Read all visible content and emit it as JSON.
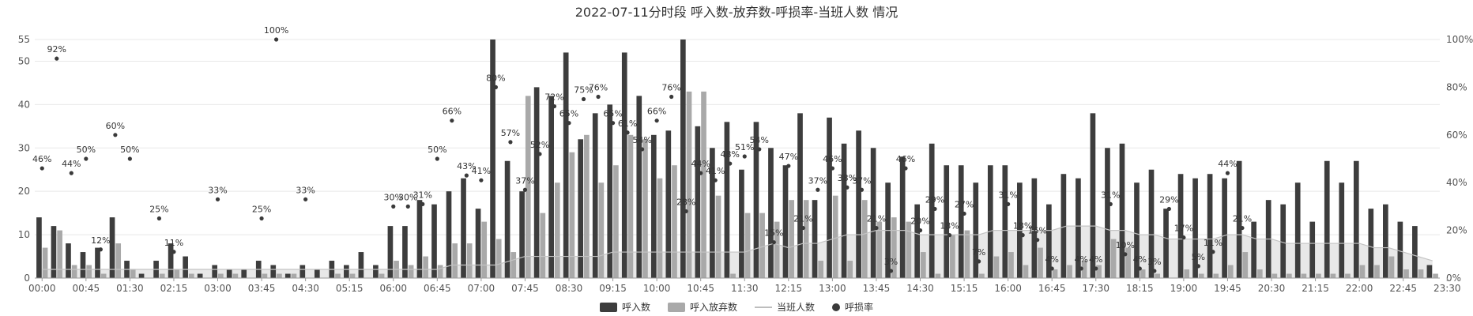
{
  "chart_data": {
    "type": "bar",
    "title": "2022-07-11分时段 呼入数-放弃数-呼损率-当班人数 情况",
    "xlabel": "",
    "ylabel": "",
    "ylim": [
      0,
      55
    ],
    "y2lim": [
      0,
      100
    ],
    "y_ticks": [
      "0",
      "10",
      "20",
      "30",
      "40",
      "50",
      "55"
    ],
    "y2_ticks": [
      "0%",
      "20%",
      "40%",
      "60%",
      "80%",
      "100%"
    ],
    "x_tick_labels": [
      "00:00",
      "00:45",
      "01:30",
      "02:15",
      "03:00",
      "03:45",
      "04:30",
      "05:15",
      "06:00",
      "06:45",
      "07:00",
      "07:45",
      "08:30",
      "09:15",
      "10:00",
      "10:45",
      "11:30",
      "12:15",
      "13:00",
      "13:45",
      "14:30",
      "15:15",
      "16:00",
      "16:45",
      "17:30",
      "18:15",
      "19:00",
      "19:45",
      "20:30",
      "21:15",
      "22:00",
      "22:45",
      "23:30"
    ],
    "grid": true,
    "legend_position": "bottom",
    "colors": {
      "calls": "#3d3d3d",
      "abandon": "#a9a9a9",
      "staff_line": "#c4c4c4",
      "staff_area": "#e6e6e6",
      "rate_dot": "#3a3a3a"
    },
    "categories": [
      "00:00",
      "00:15",
      "00:30",
      "00:45",
      "01:00",
      "01:15",
      "01:30",
      "01:45",
      "02:00",
      "02:15",
      "02:30",
      "02:45",
      "03:00",
      "03:15",
      "03:30",
      "03:45",
      "04:00",
      "04:15",
      "04:30",
      "04:45",
      "05:00",
      "05:15",
      "05:30",
      "05:45",
      "06:00",
      "06:15",
      "06:30",
      "06:45",
      "07:00",
      "07:15",
      "07:30",
      "07:45",
      "08:00",
      "08:15",
      "08:30",
      "08:45",
      "09:00",
      "09:15",
      "09:30",
      "09:45",
      "10:00",
      "10:15",
      "10:30",
      "10:45",
      "11:00",
      "11:15",
      "11:30",
      "11:45",
      "12:00",
      "12:15",
      "12:30",
      "12:45",
      "13:00",
      "13:15",
      "13:30",
      "13:45",
      "14:00",
      "14:15",
      "14:30",
      "14:45",
      "15:00",
      "15:15",
      "15:30",
      "15:45",
      "16:00",
      "16:15",
      "16:30",
      "16:45",
      "17:00",
      "17:15",
      "17:30",
      "17:45",
      "18:00",
      "18:15",
      "18:30",
      "18:45",
      "19:00",
      "19:15",
      "19:30",
      "19:45",
      "20:00",
      "20:15",
      "20:30",
      "20:45",
      "21:00",
      "21:15",
      "21:30",
      "21:45",
      "22:00",
      "22:15",
      "22:30",
      "22:45",
      "23:00",
      "23:15",
      "23:30",
      "23:45"
    ],
    "series": [
      {
        "name": "呼入数",
        "type": "bar",
        "values": [
          14,
          12,
          8,
          6,
          7,
          14,
          4,
          1,
          4,
          8,
          5,
          1,
          3,
          2,
          2,
          4,
          3,
          1,
          3,
          2,
          4,
          3,
          6,
          3,
          12,
          12,
          18,
          17,
          20,
          23,
          16,
          55,
          27,
          20,
          44,
          42,
          52,
          32,
          38,
          40,
          52,
          42,
          33,
          34,
          55,
          35,
          30,
          36,
          25,
          36,
          30,
          26,
          38,
          18,
          37,
          31,
          34,
          30,
          22,
          28,
          17,
          31,
          26,
          26,
          22,
          26,
          26,
          22,
          23,
          17,
          24,
          23,
          38,
          30,
          31,
          22,
          25,
          16,
          24,
          23,
          24,
          23,
          27,
          13,
          18,
          17,
          22,
          13,
          27,
          22,
          27,
          16,
          17,
          13,
          12,
          3
        ]
      },
      {
        "name": "呼入放弃数",
        "type": "bar",
        "values": [
          7,
          11,
          3,
          3,
          1,
          8,
          2,
          0,
          1,
          2,
          1,
          0,
          1,
          1,
          0,
          1,
          1,
          1,
          0,
          0,
          1,
          1,
          0,
          1,
          4,
          3,
          5,
          3,
          8,
          8,
          13,
          9,
          6,
          42,
          15,
          22,
          29,
          33,
          22,
          26,
          33,
          32,
          23,
          26,
          43,
          43,
          19,
          1,
          15,
          15,
          13,
          18,
          18,
          4,
          19,
          4,
          18,
          13,
          14,
          13,
          6,
          1,
          10,
          11,
          1,
          5,
          6,
          3,
          7,
          2,
          3,
          4,
          3,
          9,
          7,
          2,
          1,
          0,
          2,
          1,
          1,
          3,
          6,
          2,
          1,
          1,
          1,
          1,
          1,
          1,
          3,
          3,
          5,
          2,
          2,
          1
        ]
      },
      {
        "name": "当班人数",
        "type": "line",
        "values": [
          2,
          2,
          2,
          2,
          2,
          2,
          2,
          2,
          2,
          2,
          2,
          2,
          2,
          2,
          2,
          2,
          2,
          2,
          2,
          2,
          2,
          2,
          2,
          2,
          2,
          2,
          2,
          2,
          3,
          3,
          3,
          3,
          4,
          5,
          5,
          5,
          5,
          5,
          5,
          6,
          6,
          6,
          6,
          6,
          6,
          6,
          6,
          6,
          6,
          7,
          8,
          7,
          8,
          8,
          9,
          10,
          10,
          11,
          11,
          11,
          10,
          10,
          10,
          10,
          10,
          11,
          11,
          11,
          11,
          11,
          12,
          12,
          12,
          11,
          11,
          10,
          10,
          9,
          9,
          9,
          9,
          10,
          10,
          9,
          9,
          8,
          8,
          8,
          8,
          8,
          8,
          7,
          7,
          6,
          5,
          4
        ]
      },
      {
        "name": "呼损率",
        "type": "scatter",
        "unit": "%",
        "values": [
          46,
          92,
          44,
          50,
          12,
          60,
          50,
          null,
          25,
          11,
          null,
          null,
          33,
          null,
          null,
          25,
          100,
          null,
          33,
          null,
          null,
          null,
          null,
          null,
          30,
          30,
          31,
          50,
          66,
          43,
          41,
          80,
          57,
          37,
          52,
          72,
          65,
          75,
          76,
          65,
          61,
          54,
          66,
          76,
          28,
          44,
          41,
          48,
          51,
          54,
          15,
          47,
          21,
          37,
          46,
          38,
          37,
          21,
          3,
          46,
          20,
          29,
          18,
          27,
          7,
          null,
          31,
          18,
          16,
          4,
          null,
          4,
          4,
          31,
          10,
          4,
          3,
          29,
          17,
          5,
          11,
          44,
          21,
          null,
          null,
          null,
          null,
          null,
          null,
          null,
          null,
          null,
          null,
          null,
          null,
          null
        ]
      }
    ]
  },
  "legend": {
    "items": [
      "呼入数",
      "呼入放弃数",
      "当班人数",
      "呼损率"
    ]
  }
}
